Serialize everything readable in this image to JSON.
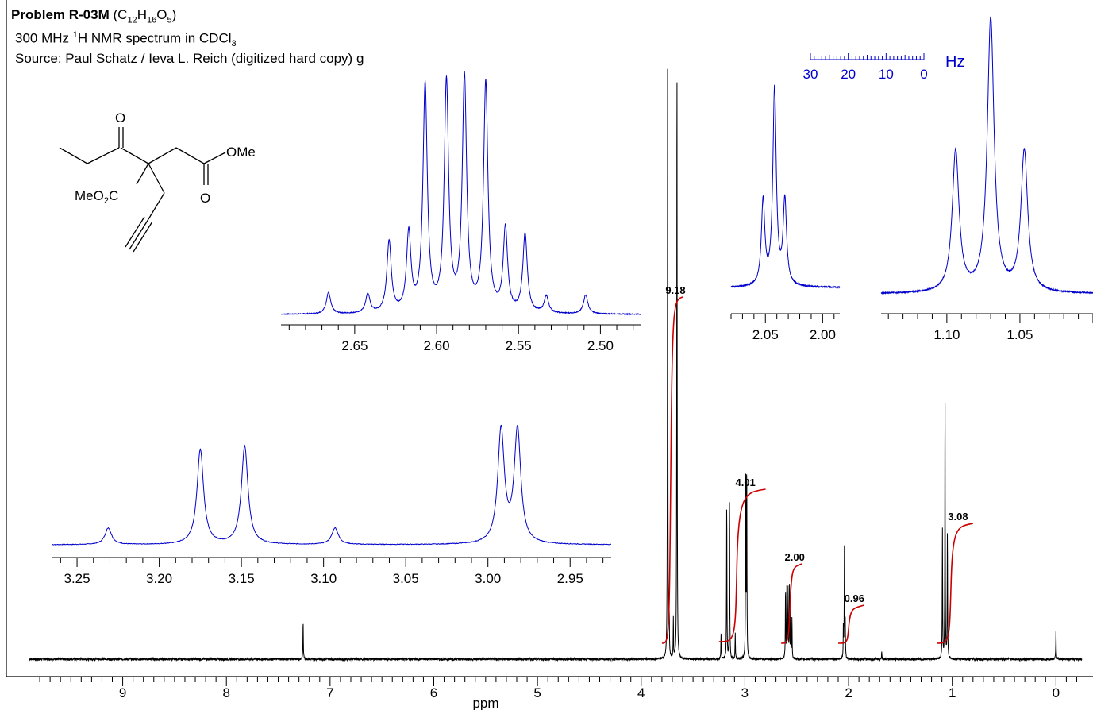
{
  "header": {
    "problem_label": "Problem R-03M",
    "formula": "(C12H16O5)",
    "spectrum_prefix": "300 MHz ",
    "spectrum_nucleus": "1",
    "spectrum_suffix": "H NMR spectrum in CDCl",
    "spectrum_solvent_sub": "3",
    "source": "Source: Paul Schatz / Ieva L. Reich (digitized hard copy) g"
  },
  "structure": {
    "labels": {
      "o_top": "O",
      "ome": "OMe",
      "meo2c_me": "MeO",
      "meo2c_sub": "2",
      "meo2c_c": "C",
      "o_bottom": "O"
    }
  },
  "hz_scale": {
    "ticks": [
      "30",
      "20",
      "10",
      "0"
    ],
    "unit": "Hz"
  },
  "colors": {
    "main": "#000000",
    "inset": "#0000cc",
    "integral": "#cc0000",
    "hz_scale": "#0000cc"
  },
  "chart_data": [
    {
      "type": "line",
      "name": "main-spectrum",
      "xlabel": "ppm",
      "xlim": [
        9.9,
        -0.25
      ],
      "x_ticks": [
        "9",
        "8",
        "7",
        "6",
        "5",
        "4",
        "3",
        "2",
        "1",
        "0"
      ],
      "peaks": [
        {
          "ppm": 7.26,
          "height": 0.061
        },
        {
          "ppm": 3.745,
          "height": 1.0
        },
        {
          "ppm": 3.73,
          "height": 0.06
        },
        {
          "ppm": 3.69,
          "height": 0.06
        },
        {
          "ppm": 3.655,
          "height": 0.96
        },
        {
          "ppm": 3.23,
          "height": 0.04
        },
        {
          "ppm": 3.175,
          "height": 0.245
        },
        {
          "ppm": 3.148,
          "height": 0.255
        },
        {
          "ppm": 3.093,
          "height": 0.04
        },
        {
          "ppm": 2.992,
          "height": 0.3
        },
        {
          "ppm": 2.982,
          "height": 0.3
        },
        {
          "ppm": 2.608,
          "height": 0.11
        },
        {
          "ppm": 2.595,
          "height": 0.11
        },
        {
          "ppm": 2.583,
          "height": 0.11
        },
        {
          "ppm": 2.57,
          "height": 0.11
        },
        {
          "ppm": 2.558,
          "height": 0.07
        },
        {
          "ppm": 2.546,
          "height": 0.06
        },
        {
          "ppm": 2.05,
          "height": 0.05
        },
        {
          "ppm": 2.04,
          "height": 0.18
        },
        {
          "ppm": 2.032,
          "height": 0.05
        },
        {
          "ppm": 1.68,
          "height": 0.012
        },
        {
          "ppm": 1.095,
          "height": 0.2
        },
        {
          "ppm": 1.07,
          "height": 0.41
        },
        {
          "ppm": 1.047,
          "height": 0.2
        },
        {
          "ppm": 0.0,
          "height": 0.045
        }
      ],
      "integrals": [
        {
          "label": "9.18",
          "from": 3.8,
          "to": 3.6
        },
        {
          "label": "4.01",
          "from": 3.25,
          "to": 2.8
        },
        {
          "label": "2.00",
          "from": 2.65,
          "to": 2.45
        },
        {
          "label": "0.96",
          "from": 2.1,
          "to": 1.85
        },
        {
          "label": "3.08",
          "from": 1.15,
          "to": 0.8
        }
      ]
    },
    {
      "type": "line",
      "name": "inset-2.58",
      "xlim": [
        2.695,
        2.475
      ],
      "x_ticks": [
        "2.65",
        "2.60",
        "2.55",
        "2.50"
      ],
      "peaks": [
        {
          "ppm": 2.666,
          "height": 0.09
        },
        {
          "ppm": 2.642,
          "height": 0.08
        },
        {
          "ppm": 2.629,
          "height": 0.3
        },
        {
          "ppm": 2.617,
          "height": 0.33
        },
        {
          "ppm": 2.607,
          "height": 0.95
        },
        {
          "ppm": 2.594,
          "height": 0.96
        },
        {
          "ppm": 2.583,
          "height": 0.98
        },
        {
          "ppm": 2.57,
          "height": 0.96
        },
        {
          "ppm": 2.558,
          "height": 0.35
        },
        {
          "ppm": 2.546,
          "height": 0.33
        },
        {
          "ppm": 2.533,
          "height": 0.07
        },
        {
          "ppm": 2.509,
          "height": 0.08
        }
      ]
    },
    {
      "type": "line",
      "name": "inset-2.04",
      "xlim": [
        2.08,
        1.985
      ],
      "x_ticks": [
        "2.05",
        "2.00"
      ],
      "peaks": [
        {
          "ppm": 2.052,
          "height": 0.4
        },
        {
          "ppm": 2.042,
          "height": 0.93
        },
        {
          "ppm": 2.033,
          "height": 0.4
        }
      ]
    },
    {
      "type": "line",
      "name": "inset-1.07",
      "xlim": [
        1.145,
        1.0
      ],
      "x_ticks": [
        "1.10",
        "1.05"
      ],
      "peaks": [
        {
          "ppm": 1.094,
          "height": 0.5
        },
        {
          "ppm": 1.07,
          "height": 0.97
        },
        {
          "ppm": 1.047,
          "height": 0.5
        }
      ]
    },
    {
      "type": "line",
      "name": "inset-3.1",
      "xlim": [
        3.265,
        2.925
      ],
      "x_ticks": [
        "3.25",
        "3.20",
        "3.15",
        "3.10",
        "3.05",
        "3.00",
        "2.95"
      ],
      "peaks": [
        {
          "ppm": 3.231,
          "height": 0.1
        },
        {
          "ppm": 3.175,
          "height": 0.57
        },
        {
          "ppm": 3.148,
          "height": 0.59
        },
        {
          "ppm": 3.093,
          "height": 0.1
        },
        {
          "ppm": 2.992,
          "height": 0.68
        },
        {
          "ppm": 2.982,
          "height": 0.68
        }
      ]
    }
  ]
}
